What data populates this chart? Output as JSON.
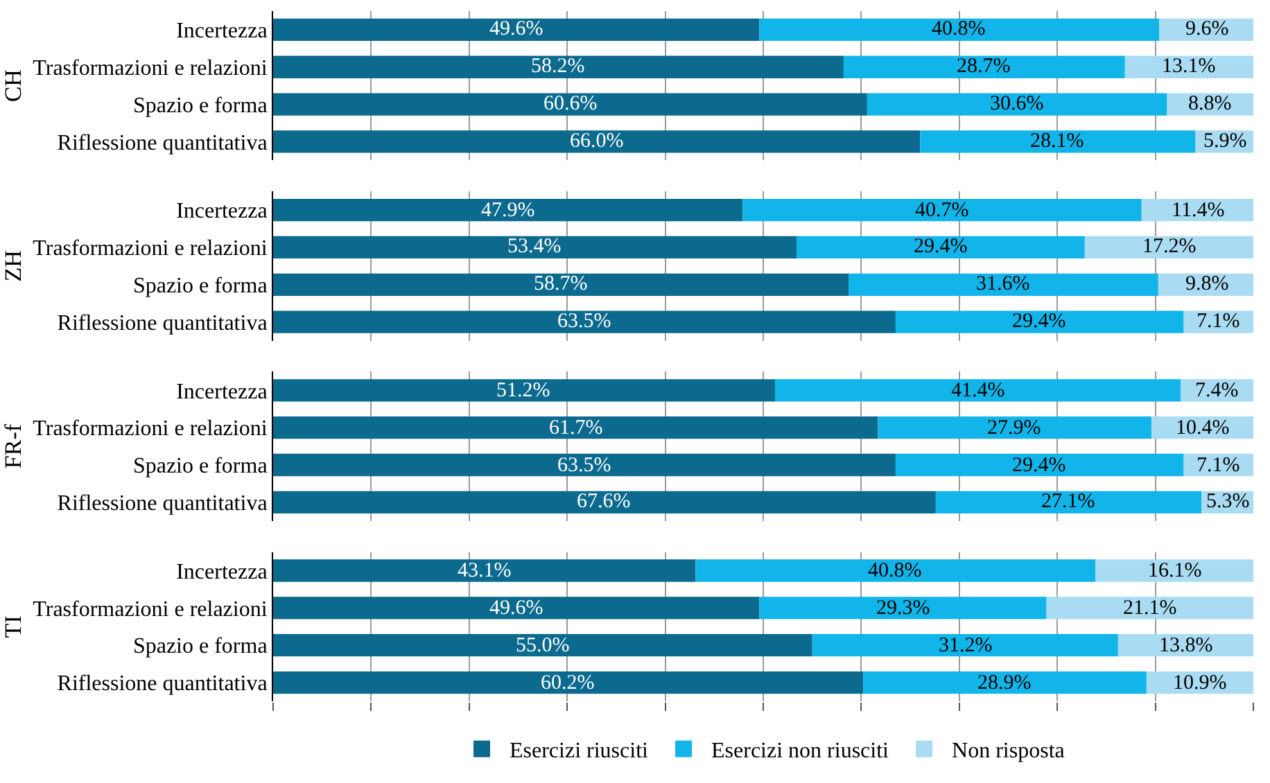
{
  "chart_data": [
    {
      "type": "bar",
      "orientation": "horizontal",
      "stacked": true,
      "ylabel": "CH",
      "categories": [
        "Incertezza",
        "Trasformazioni e relazioni",
        "Spazio e forma",
        "Riflessione quantitativa"
      ],
      "xlim": [
        0,
        100
      ],
      "xticks": [
        {
          "value": 0,
          "label": null
        },
        {
          "value": 10,
          "label": null
        },
        {
          "value": 20,
          "label": null
        },
        {
          "value": 30,
          "label": null
        },
        {
          "value": 40,
          "label": null
        },
        {
          "value": 50,
          "label": null
        },
        {
          "value": 60,
          "label": null
        },
        {
          "value": 70,
          "label": null
        },
        {
          "value": 80,
          "label": null
        },
        {
          "value": 90,
          "label": null
        }
      ],
      "grid": "x",
      "tick_labels": "y",
      "legend": "bottom",
      "series": [
        {
          "name": "Esercizi riusciti",
          "color": "#0b6a8e",
          "values": [
            49.6,
            58.2,
            60.6,
            66.0
          ],
          "value_labels": [
            "49.6%",
            "58.2%",
            "60.6%",
            "66.0%"
          ]
        },
        {
          "name": "Esercizi non riusciti",
          "color": "#12b5ea",
          "values": [
            40.8,
            28.7,
            30.6,
            28.1
          ],
          "value_labels": [
            "40.8%",
            "28.7%",
            "30.6%",
            "28.1%"
          ]
        },
        {
          "name": "Non risposta",
          "color": "#a9dcf2",
          "values": [
            9.6,
            13.1,
            8.8,
            5.9
          ],
          "value_labels": [
            "9.6%",
            "13.1%",
            "8.8%",
            "5.9%"
          ]
        }
      ]
    },
    {
      "type": "bar",
      "orientation": "horizontal",
      "stacked": true,
      "ylabel": "ZH",
      "categories": [
        "Incertezza",
        "Trasformazioni e relazioni",
        "Spazio e forma",
        "Riflessione quantitativa"
      ],
      "xlim": [
        0,
        100
      ],
      "xticks": [
        {
          "value": 0,
          "label": null
        },
        {
          "value": 10,
          "label": null
        },
        {
          "value": 20,
          "label": null
        },
        {
          "value": 30,
          "label": null
        },
        {
          "value": 40,
          "label": null
        },
        {
          "value": 50,
          "label": null
        },
        {
          "value": 60,
          "label": null
        },
        {
          "value": 70,
          "label": null
        },
        {
          "value": 80,
          "label": null
        },
        {
          "value": 90,
          "label": null
        }
      ],
      "grid": "x",
      "tick_labels": "y",
      "series": [
        {
          "color": "#0b6a8e",
          "values": [
            47.9,
            53.4,
            58.7,
            63.5
          ],
          "value_labels": [
            "47.9%",
            "53.4%",
            "58.7%",
            "63.5%"
          ]
        },
        {
          "color": "#12b5ea",
          "values": [
            40.7,
            29.4,
            31.6,
            29.4
          ],
          "value_labels": [
            "40.7%",
            "29.4%",
            "31.6%",
            "29.4%"
          ]
        },
        {
          "color": "#a9dcf2",
          "values": [
            11.4,
            17.2,
            9.8,
            7.1
          ],
          "value_labels": [
            "11.4%",
            "17.2%",
            "9.8%",
            "7.1%"
          ]
        }
      ]
    },
    {
      "type": "bar",
      "orientation": "horizontal",
      "stacked": true,
      "ylabel": "FR-f",
      "categories": [
        "Incertezza",
        "Trasformazioni e relazioni",
        "Spazio e forma",
        "Riflessione quantitativa"
      ],
      "xlim": [
        0,
        100
      ],
      "xticks": [
        {
          "value": 0,
          "label": null
        },
        {
          "value": 10,
          "label": null
        },
        {
          "value": 20,
          "label": null
        },
        {
          "value": 30,
          "label": null
        },
        {
          "value": 40,
          "label": null
        },
        {
          "value": 50,
          "label": null
        },
        {
          "value": 60,
          "label": null
        },
        {
          "value": 70,
          "label": null
        },
        {
          "value": 80,
          "label": null
        },
        {
          "value": 90,
          "label": null
        }
      ],
      "grid": "x",
      "tick_labels": "y",
      "series": [
        {
          "color": "#0b6a8e",
          "values": [
            51.2,
            61.7,
            63.5,
            67.6
          ],
          "value_labels": [
            "51.2%",
            "61.7%",
            "63.5%",
            "67.6%"
          ]
        },
        {
          "color": "#12b5ea",
          "values": [
            41.4,
            27.9,
            29.4,
            27.1
          ],
          "value_labels": [
            "41.4%",
            "27.9%",
            "29.4%",
            "27.1%"
          ]
        },
        {
          "color": "#a9dcf2",
          "values": [
            7.4,
            10.4,
            7.1,
            5.3
          ],
          "value_labels": [
            "7.4%",
            "10.4%",
            "7.1%",
            "5.3%"
          ]
        }
      ]
    },
    {
      "type": "bar",
      "orientation": "horizontal",
      "stacked": true,
      "ylabel": "TI",
      "categories": [
        "Incertezza",
        "Trasformazioni e relazioni",
        "Spazio e forma",
        "Riflessione quantitativa"
      ],
      "xlim": [
        0,
        100
      ],
      "xticks": [
        {
          "value": 0,
          "label": null
        },
        {
          "value": 10,
          "label": null
        },
        {
          "value": 20,
          "label": null
        },
        {
          "value": 30,
          "label": null
        },
        {
          "value": 40,
          "label": null
        },
        {
          "value": 50,
          "label": null
        },
        {
          "value": 60,
          "label": null
        },
        {
          "value": 70,
          "label": null
        },
        {
          "value": 80,
          "label": null
        },
        {
          "value": 90,
          "label": null
        },
        {
          "value": 100,
          "label": null
        }
      ],
      "grid": "x",
      "tick_labels": "y",
      "series": [
        {
          "color": "#0b6a8e",
          "values": [
            43.1,
            49.6,
            55.0,
            60.2
          ],
          "value_labels": [
            "43.1%",
            "49.6%",
            "55.0%",
            "60.2%"
          ]
        },
        {
          "color": "#12b5ea",
          "values": [
            40.8,
            29.3,
            31.2,
            28.9
          ],
          "value_labels": [
            "40.8%",
            "29.3%",
            "31.2%",
            "28.9%"
          ]
        },
        {
          "color": "#a9dcf2",
          "values": [
            16.1,
            21.1,
            13.8,
            10.9
          ],
          "value_labels": [
            "16.1%",
            "21.1%",
            "13.8%",
            "10.9%"
          ]
        }
      ]
    }
  ]
}
